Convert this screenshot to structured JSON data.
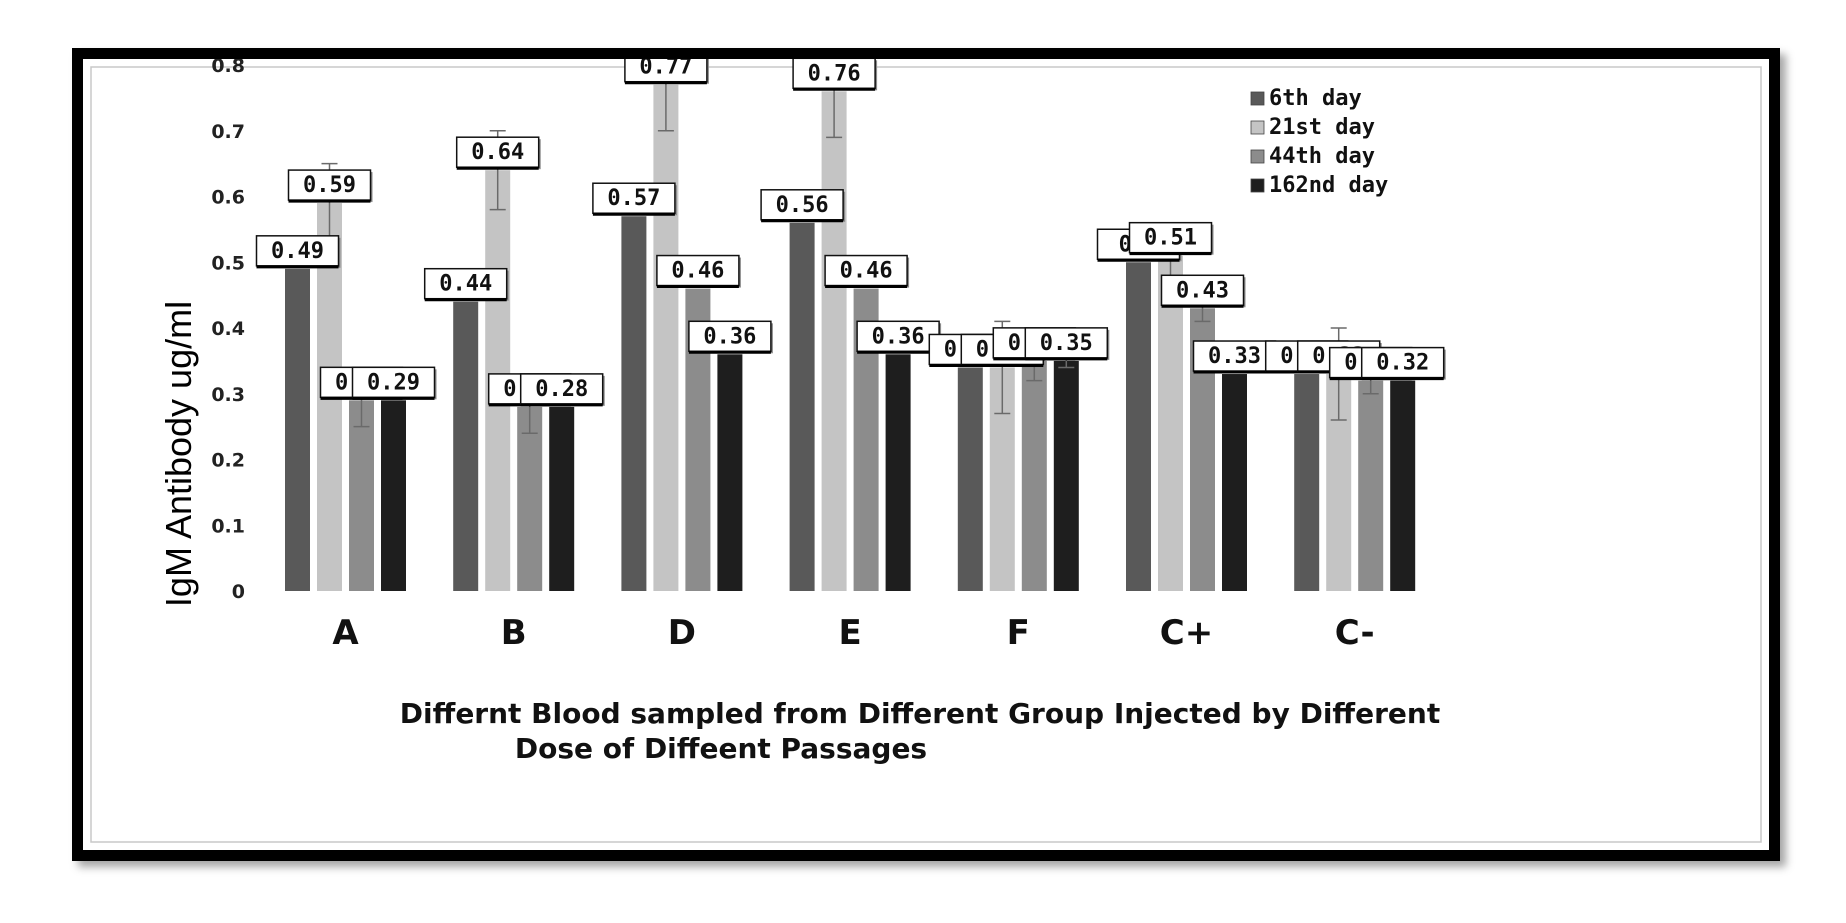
{
  "chart_data": {
    "type": "bar",
    "categories": [
      "A",
      "B",
      "D",
      "E",
      "F",
      "C+",
      "C-"
    ],
    "series": [
      {
        "name": "6th day",
        "color": "#595959",
        "values": [
          0.49,
          0.44,
          0.57,
          0.56,
          0.34,
          0.5,
          0.33
        ],
        "labels": [
          "0.49",
          "0.44",
          "0.57",
          "0.56",
          "0.34",
          "0.5",
          "0.33"
        ]
      },
      {
        "name": "21st day",
        "color": "#c4c4c4",
        "values": [
          0.59,
          0.64,
          0.77,
          0.76,
          0.34,
          0.51,
          0.33
        ],
        "labels": [
          "0.59",
          "0.64",
          "0.77",
          "0.76",
          "0.34",
          "0.51",
          "0.33"
        ],
        "errors": [
          0.06,
          0.06,
          0.07,
          0.07,
          0.07,
          0.05,
          0.07
        ]
      },
      {
        "name": "44th day",
        "color": "#8c8c8c",
        "values": [
          0.29,
          0.28,
          0.46,
          0.46,
          0.35,
          0.43,
          0.32
        ],
        "labels": [
          "0.29",
          "0.28",
          "0.46",
          "0.46",
          "0.35",
          "0.43",
          "0.32"
        ],
        "errors": [
          0.04,
          0.04,
          0.0,
          0.0,
          0.03,
          0.02,
          0.02
        ]
      },
      {
        "name": "162nd day",
        "color": "#1e1e1e",
        "values": [
          0.29,
          0.28,
          0.36,
          0.36,
          0.35,
          0.33,
          0.32
        ],
        "labels": [
          "0.29",
          "0.28",
          "0.36",
          "0.36",
          "0.35",
          "0.33",
          "0.32"
        ],
        "errors": [
          0.0,
          0.0,
          0.0,
          0.0,
          0.01,
          0.0,
          0.0
        ]
      }
    ],
    "yticks": [
      "0",
      "0.1",
      "0.2",
      "0.3",
      "0.4",
      "0.5",
      "0.6",
      "0.7",
      "0.8"
    ],
    "ylim": [
      0,
      0.8
    ],
    "ylabel": "IgM Antibody ug/ml",
    "xlabel_line1": "Differnt Blood sampled from Different Group Injected by Different",
    "xlabel_line2": "Dose of Diffeent Passages",
    "legend_position": "top-right",
    "grid": false
  }
}
